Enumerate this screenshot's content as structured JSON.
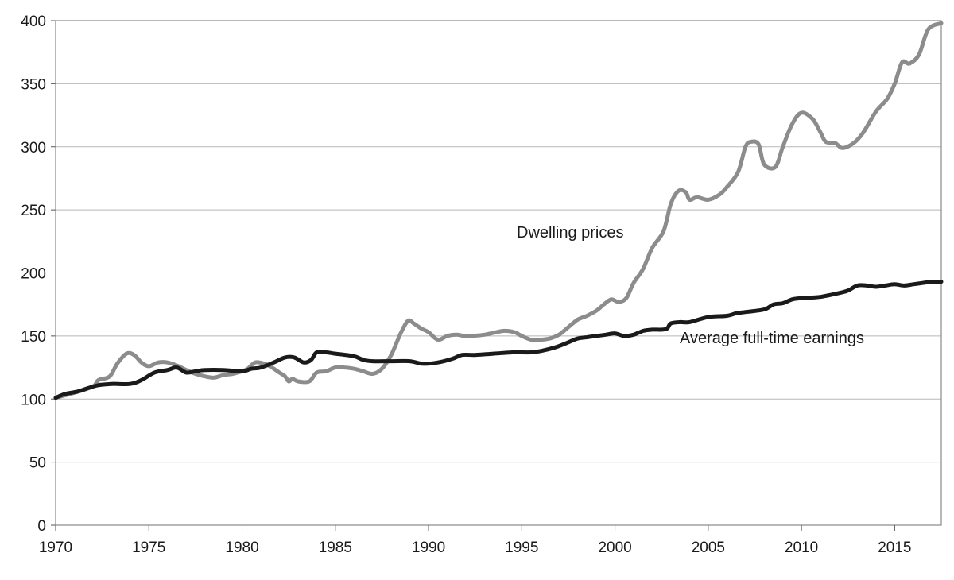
{
  "chart_data": {
    "type": "line",
    "title": "",
    "xlabel": "",
    "ylabel": "",
    "xlim": [
      1970,
      2017.5
    ],
    "ylim": [
      0,
      400
    ],
    "grid": true,
    "legend": "none",
    "x_ticks": [
      "1970",
      "1975",
      "1980",
      "1985",
      "1990",
      "1995",
      "2000",
      "2005",
      "2010",
      "2015"
    ],
    "y_ticks": [
      "0",
      "50",
      "100",
      "150",
      "200",
      "250",
      "300",
      "350",
      "400"
    ],
    "series": [
      {
        "name": "Dwelling prices",
        "color": "#8c8c8c",
        "points": [
          [
            1970,
            101
          ],
          [
            1971,
            105
          ],
          [
            1972,
            110
          ],
          [
            1972.3,
            115
          ],
          [
            1972.9,
            118
          ],
          [
            1973.3,
            128
          ],
          [
            1973.8,
            136
          ],
          [
            1974.2,
            135
          ],
          [
            1974.6,
            129
          ],
          [
            1975.0,
            126
          ],
          [
            1975.5,
            129
          ],
          [
            1976.0,
            129
          ],
          [
            1976.6,
            126
          ],
          [
            1977.0,
            123
          ],
          [
            1977.5,
            120
          ],
          [
            1978.0,
            118
          ],
          [
            1978.5,
            117
          ],
          [
            1979.0,
            119
          ],
          [
            1979.5,
            120
          ],
          [
            1980.0,
            122
          ],
          [
            1980.3,
            124
          ],
          [
            1980.7,
            129
          ],
          [
            1981.2,
            128
          ],
          [
            1981.6,
            125
          ],
          [
            1982.0,
            121
          ],
          [
            1982.3,
            118
          ],
          [
            1982.5,
            114
          ],
          [
            1982.7,
            116
          ],
          [
            1983.0,
            114
          ],
          [
            1983.6,
            114
          ],
          [
            1984.0,
            121
          ],
          [
            1984.5,
            122
          ],
          [
            1985.0,
            125
          ],
          [
            1985.5,
            125
          ],
          [
            1986.0,
            124
          ],
          [
            1986.5,
            122
          ],
          [
            1987.0,
            120
          ],
          [
            1987.5,
            124
          ],
          [
            1988.0,
            135
          ],
          [
            1988.5,
            152
          ],
          [
            1988.9,
            162
          ],
          [
            1989.2,
            160
          ],
          [
            1989.6,
            156
          ],
          [
            1990.0,
            153
          ],
          [
            1990.5,
            147
          ],
          [
            1991.0,
            150
          ],
          [
            1991.5,
            151
          ],
          [
            1992.0,
            150
          ],
          [
            1993.0,
            151
          ],
          [
            1994.0,
            154
          ],
          [
            1994.6,
            153
          ],
          [
            1995.0,
            150
          ],
          [
            1995.5,
            147
          ],
          [
            1996.0,
            147
          ],
          [
            1996.5,
            148
          ],
          [
            1997.0,
            151
          ],
          [
            1997.5,
            157
          ],
          [
            1998.0,
            163
          ],
          [
            1998.5,
            166
          ],
          [
            1999.0,
            170
          ],
          [
            1999.4,
            175
          ],
          [
            1999.8,
            179
          ],
          [
            2000.2,
            177
          ],
          [
            2000.6,
            180
          ],
          [
            2001.0,
            192
          ],
          [
            2001.5,
            203
          ],
          [
            2002.0,
            220
          ],
          [
            2002.6,
            233
          ],
          [
            2003.0,
            255
          ],
          [
            2003.4,
            265
          ],
          [
            2003.8,
            264
          ],
          [
            2004.0,
            258
          ],
          [
            2004.4,
            260
          ],
          [
            2005.0,
            258
          ],
          [
            2005.6,
            262
          ],
          [
            2006.0,
            268
          ],
          [
            2006.6,
            280
          ],
          [
            2007.0,
            300
          ],
          [
            2007.3,
            304
          ],
          [
            2007.7,
            302
          ],
          [
            2008.0,
            286
          ],
          [
            2008.6,
            284
          ],
          [
            2009.0,
            300
          ],
          [
            2009.5,
            318
          ],
          [
            2010.0,
            327
          ],
          [
            2010.6,
            322
          ],
          [
            2011.0,
            312
          ],
          [
            2011.3,
            304
          ],
          [
            2011.8,
            303
          ],
          [
            2012.2,
            299
          ],
          [
            2012.8,
            303
          ],
          [
            2013.3,
            311
          ],
          [
            2014.0,
            328
          ],
          [
            2014.6,
            338
          ],
          [
            2015.0,
            350
          ],
          [
            2015.4,
            367
          ],
          [
            2015.8,
            366
          ],
          [
            2016.3,
            373
          ],
          [
            2016.8,
            393
          ],
          [
            2017.5,
            398
          ]
        ]
      },
      {
        "name": "Average full-time earnings",
        "color": "#1a1a1a",
        "points": [
          [
            1970,
            101
          ],
          [
            1970.5,
            104
          ],
          [
            1971.2,
            106
          ],
          [
            1971.8,
            109
          ],
          [
            1972.3,
            111
          ],
          [
            1973,
            112
          ],
          [
            1974,
            112
          ],
          [
            1974.6,
            115
          ],
          [
            1975.3,
            121
          ],
          [
            1976.0,
            123
          ],
          [
            1976.5,
            125
          ],
          [
            1977.0,
            121
          ],
          [
            1977.5,
            122
          ],
          [
            1978.0,
            123
          ],
          [
            1979.0,
            123
          ],
          [
            1980.0,
            122
          ],
          [
            1980.5,
            124
          ],
          [
            1981.0,
            125
          ],
          [
            1981.7,
            129
          ],
          [
            1982.3,
            133
          ],
          [
            1982.8,
            133
          ],
          [
            1983.3,
            129
          ],
          [
            1983.7,
            131
          ],
          [
            1984.0,
            137
          ],
          [
            1984.5,
            137
          ],
          [
            1985.0,
            136
          ],
          [
            1986.0,
            134
          ],
          [
            1986.5,
            131
          ],
          [
            1987.0,
            130
          ],
          [
            1988.0,
            130
          ],
          [
            1989.0,
            130
          ],
          [
            1989.7,
            128
          ],
          [
            1990.5,
            129
          ],
          [
            1991.3,
            132
          ],
          [
            1991.8,
            135
          ],
          [
            1992.5,
            135
          ],
          [
            1993.5,
            136
          ],
          [
            1994.5,
            137
          ],
          [
            1995.5,
            137
          ],
          [
            1996.0,
            138
          ],
          [
            1996.8,
            141
          ],
          [
            1997.5,
            145
          ],
          [
            1998.0,
            148
          ],
          [
            1998.5,
            149
          ],
          [
            1999.0,
            150
          ],
          [
            1999.5,
            151
          ],
          [
            2000.0,
            152
          ],
          [
            2000.5,
            150
          ],
          [
            2001.0,
            151
          ],
          [
            2001.5,
            154
          ],
          [
            2002.0,
            155
          ],
          [
            2002.5,
            155
          ],
          [
            2002.8,
            156
          ],
          [
            2003.0,
            160
          ],
          [
            2003.5,
            161
          ],
          [
            2004.0,
            161
          ],
          [
            2005.0,
            165
          ],
          [
            2006.0,
            166
          ],
          [
            2006.5,
            168
          ],
          [
            2007.0,
            169
          ],
          [
            2008.0,
            171
          ],
          [
            2008.5,
            175
          ],
          [
            2009.0,
            176
          ],
          [
            2009.5,
            179
          ],
          [
            2010.0,
            180
          ],
          [
            2011.0,
            181
          ],
          [
            2012.0,
            184
          ],
          [
            2012.5,
            186
          ],
          [
            2013.0,
            190
          ],
          [
            2013.5,
            190
          ],
          [
            2014.0,
            189
          ],
          [
            2014.5,
            190
          ],
          [
            2015.0,
            191
          ],
          [
            2015.5,
            190
          ],
          [
            2016.0,
            191
          ],
          [
            2016.5,
            192
          ],
          [
            2017.0,
            193
          ],
          [
            2017.5,
            193
          ]
        ]
      }
    ]
  }
}
